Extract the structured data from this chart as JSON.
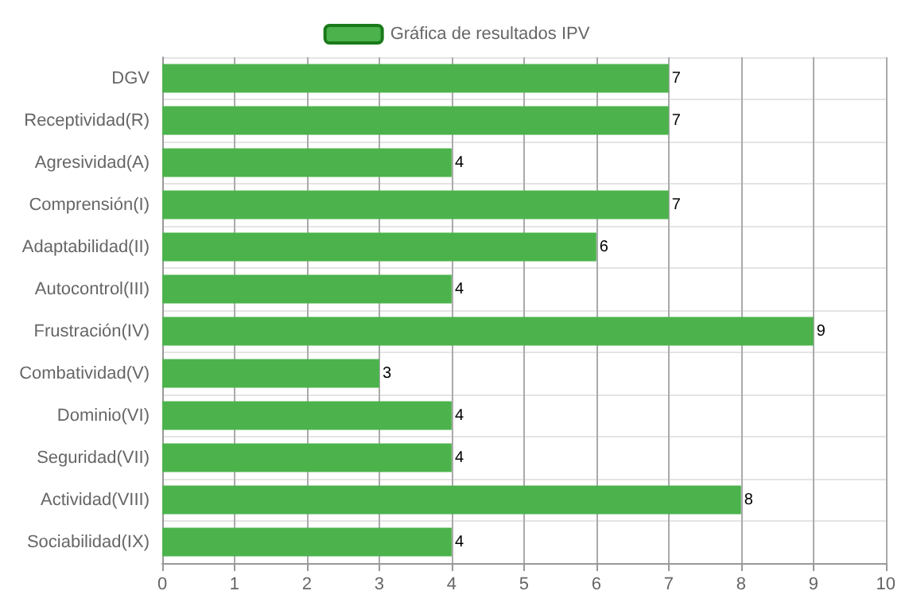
{
  "chart_data": {
    "type": "bar",
    "orientation": "horizontal",
    "categories": [
      "DGV",
      "Receptividad(R)",
      "Agresividad(A)",
      "Comprensión(I)",
      "Adaptabilidad(II)",
      "Autocontrol(III)",
      "Frustración(IV)",
      "Combatividad(V)",
      "Dominio(VI)",
      "Seguridad(VII)",
      "Actividad(VIII)",
      "Sociabilidad(IX)"
    ],
    "series": [
      {
        "name": "Gráfica de resultados IPV",
        "color": "#4cb34c",
        "values": [
          7,
          7,
          4,
          7,
          6,
          4,
          9,
          3,
          4,
          4,
          8,
          4
        ]
      }
    ],
    "xlim": [
      0,
      10
    ],
    "xticks": [
      0,
      1,
      2,
      3,
      4,
      5,
      6,
      7,
      8,
      9,
      10
    ],
    "grid": true,
    "legend": "top",
    "data_labels": true
  }
}
